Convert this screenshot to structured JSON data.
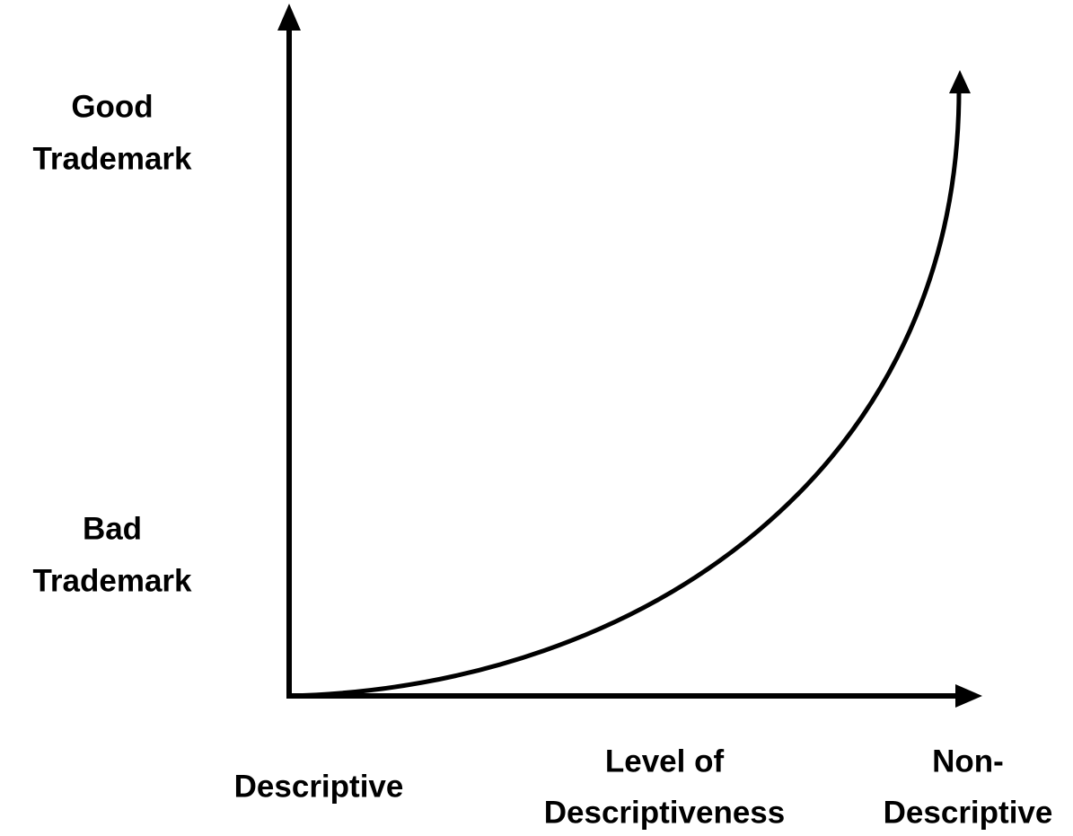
{
  "y_labels": {
    "top": [
      "Good",
      "Trademark"
    ],
    "bottom": [
      "Bad",
      "Trademark"
    ]
  },
  "x_labels": {
    "left": [
      "Descriptive"
    ],
    "center": [
      "Level of",
      "Descriptiveness"
    ],
    "right": [
      "Non-",
      "Descriptive"
    ]
  }
}
